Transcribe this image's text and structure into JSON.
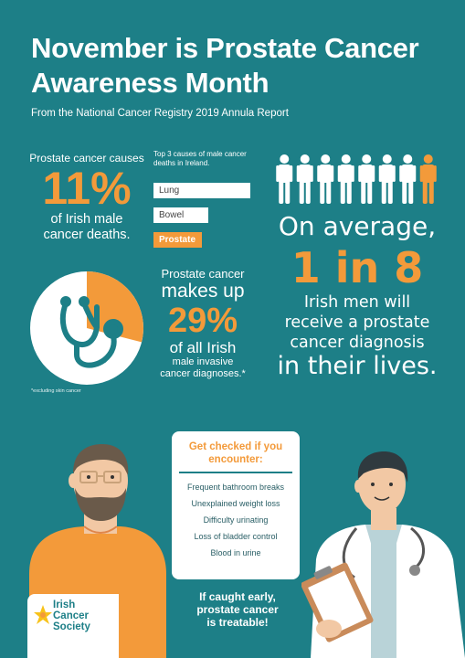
{
  "title": "November is Prostate Cancer Awareness Month",
  "subtitle": "From the National Cancer Registry 2019 Annula Report",
  "causes": {
    "line1": "Prostate cancer causes",
    "percent": "11%",
    "line2": "of Irish male",
    "line3": "cancer deaths."
  },
  "top3": {
    "heading": "Top 3 causes of male cancer deaths in Ireland.",
    "items": [
      "Lung",
      "Bowel",
      "Prostate"
    ],
    "relative_lengths": [
      1.0,
      0.57,
      0.5
    ]
  },
  "average": {
    "line1": "On average,",
    "ratio": "1 in 8",
    "line2": "Irish men will",
    "line3": "receive a prostate",
    "line4": "cancer diagnosis",
    "line5": "in their lives."
  },
  "people": {
    "count": 8,
    "highlighted_index": 7
  },
  "invasive": {
    "line1": "Prostate cancer",
    "line2": "makes up",
    "percent": "29%",
    "line3": "of all Irish",
    "line4": "male invasive",
    "line5": "cancer diagnoses.*",
    "pie_fraction": 0.29
  },
  "footnote": "*excluding skin cancer",
  "check": {
    "heading1": "Get checked if you",
    "heading2": "encounter:",
    "items": [
      "Frequent bathroom breaks",
      "Unexplained weight loss",
      "Difficulty urinating",
      "Loss of bladder control",
      "Blood in urine"
    ]
  },
  "treatable": {
    "line1": "If caught early,",
    "line2": "prostate cancer",
    "line3": "is treatable!"
  },
  "logo": {
    "line1": "Irish",
    "line2": "Cancer",
    "line3": "Society"
  },
  "colors": {
    "background": "#1d7f87",
    "accent": "#f39a3a",
    "text": "#ffffff"
  },
  "icons": [
    "stethoscope-icon",
    "person-icon",
    "man-illustration",
    "doctor-illustration",
    "daffodil-logo-icon"
  ]
}
